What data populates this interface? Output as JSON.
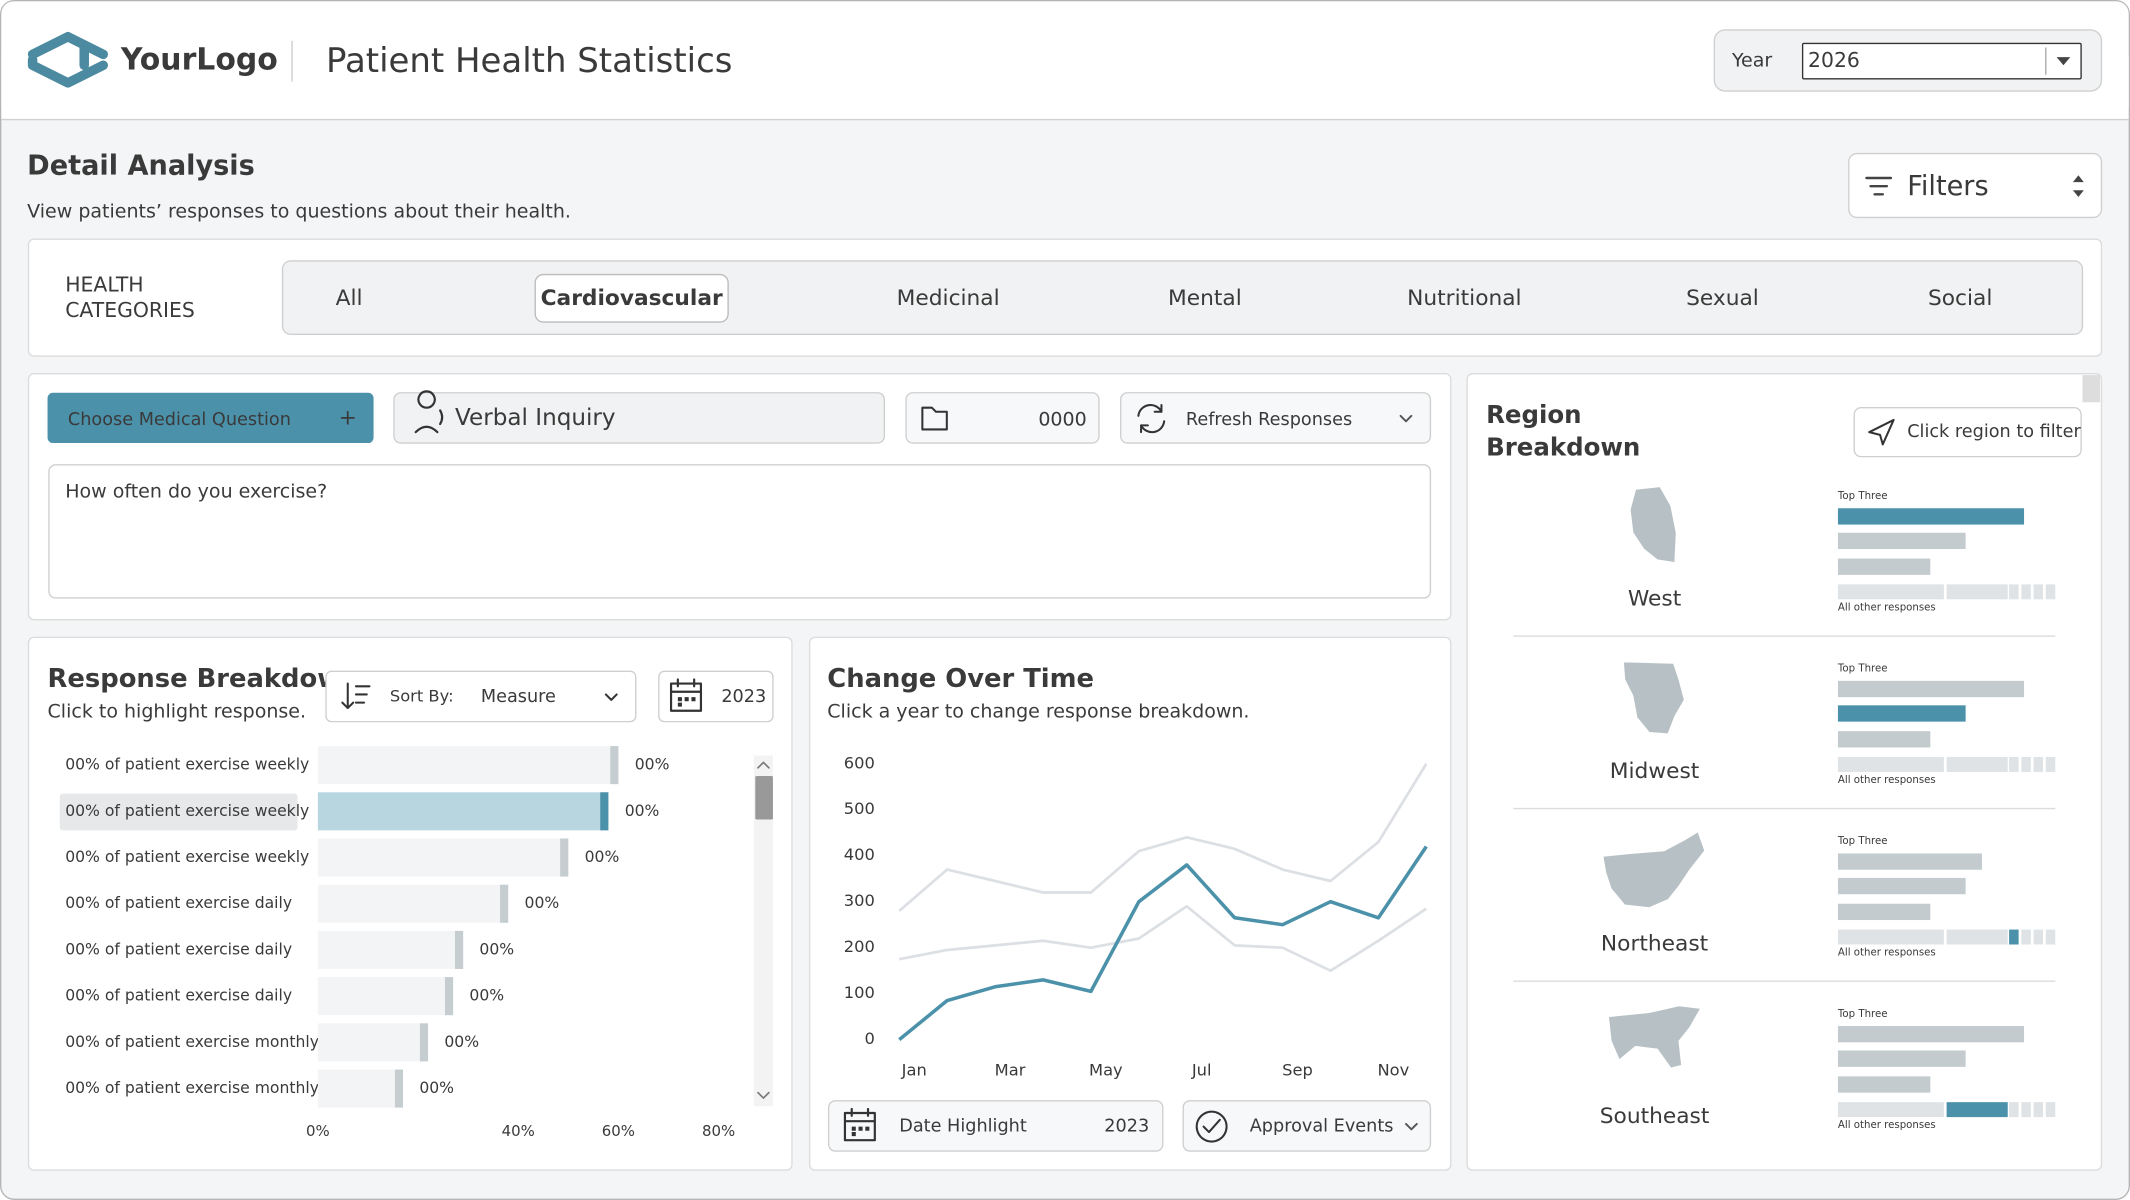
{
  "header": {
    "logo": "YourLogo",
    "title": "Patient Health Statistics",
    "year_label": "Year",
    "year": "2026"
  },
  "detail": {
    "title": "Detail Analysis",
    "subtitle": "View patients’ responses to questions about their health.",
    "filters": "Filters"
  },
  "health_categories": {
    "label_lines": [
      "HEALTH",
      "CATEGORIES"
    ],
    "items": [
      "All",
      "Cardiovascular",
      "Medicinal",
      "Mental",
      "Nutritional",
      "Sexual",
      "Social"
    ],
    "selected_index": 1
  },
  "question": {
    "choose": "Choose Medical Question",
    "add": "+",
    "mode": "Verbal Inquiry",
    "count": "0000",
    "refresh": "Refresh Responses",
    "text": "How often do you exercise?"
  },
  "response_controls": {
    "sort_label": "Sort By:",
    "sort_value": "Measure",
    "year": "2023"
  },
  "time_controls": {
    "date_label": "Date Highlight",
    "date_year": "2023",
    "events": "Approval Events"
  },
  "region": {
    "title_lines": [
      "Region",
      "Breakdown"
    ],
    "filter": "Click region to filter",
    "top_label": "Top Three",
    "other_label": "All other responses",
    "regions": [
      "West",
      "Midwest",
      "Northeast",
      "Southeast"
    ]
  },
  "chart_data": [
    {
      "type": "bar",
      "orientation": "horizontal",
      "title": "Response Breakdown",
      "subtitle": "Click to highlight response.",
      "categories": [
        "00% of patient exercise weekly",
        "00% of patient exercise weekly",
        "00% of patient exercise weekly",
        "00% of patient exercise daily",
        "00% of patient exercise daily",
        "00% of patient exercise daily",
        "00% of patient exercise monthly",
        "00% of patient exercise monthly"
      ],
      "values": [
        60,
        58,
        50,
        38,
        29,
        27,
        22,
        17
      ],
      "bar_labels": [
        "00%",
        "00%",
        "00%",
        "00%",
        "00%",
        "00%",
        "00%",
        "00%"
      ],
      "highlight_index": 1,
      "color": "#f3f4f5",
      "marker_color": "#c6cdd0",
      "highlight_color": "#b8d6e0",
      "highlight_marker_color": "#4b91aa",
      "xlim": [
        0,
        80
      ],
      "xticks": [
        {
          "value": 0,
          "label": "0%"
        },
        {
          "value": 40,
          "label": "40%"
        },
        {
          "value": 60,
          "label": "60%"
        },
        {
          "value": 80,
          "label": "80%"
        }
      ]
    },
    {
      "type": "line",
      "title": "Change Over Time",
      "subtitle": "Click a year to change response breakdown.",
      "x": [
        "Jan",
        null,
        "Mar",
        null,
        "May",
        null,
        "Jul",
        null,
        "Sep",
        null,
        "Nov",
        null
      ],
      "series": [
        {
          "color": "#dcdfe3",
          "values": [
            280,
            370,
            345,
            320,
            320,
            410,
            440,
            415,
            370,
            345,
            430,
            600
          ]
        },
        {
          "color": "#dcdfe3",
          "values": [
            175,
            195,
            205,
            215,
            200,
            220,
            290,
            205,
            200,
            150,
            215,
            285
          ]
        },
        {
          "color": "#4b91aa",
          "values": [
            0,
            85,
            115,
            130,
            105,
            300,
            380,
            265,
            250,
            300,
            265,
            420
          ]
        }
      ],
      "ylim": [
        0,
        600
      ],
      "yticks": [
        0,
        100,
        200,
        300,
        400,
        500,
        600
      ],
      "grid": false
    }
  ]
}
